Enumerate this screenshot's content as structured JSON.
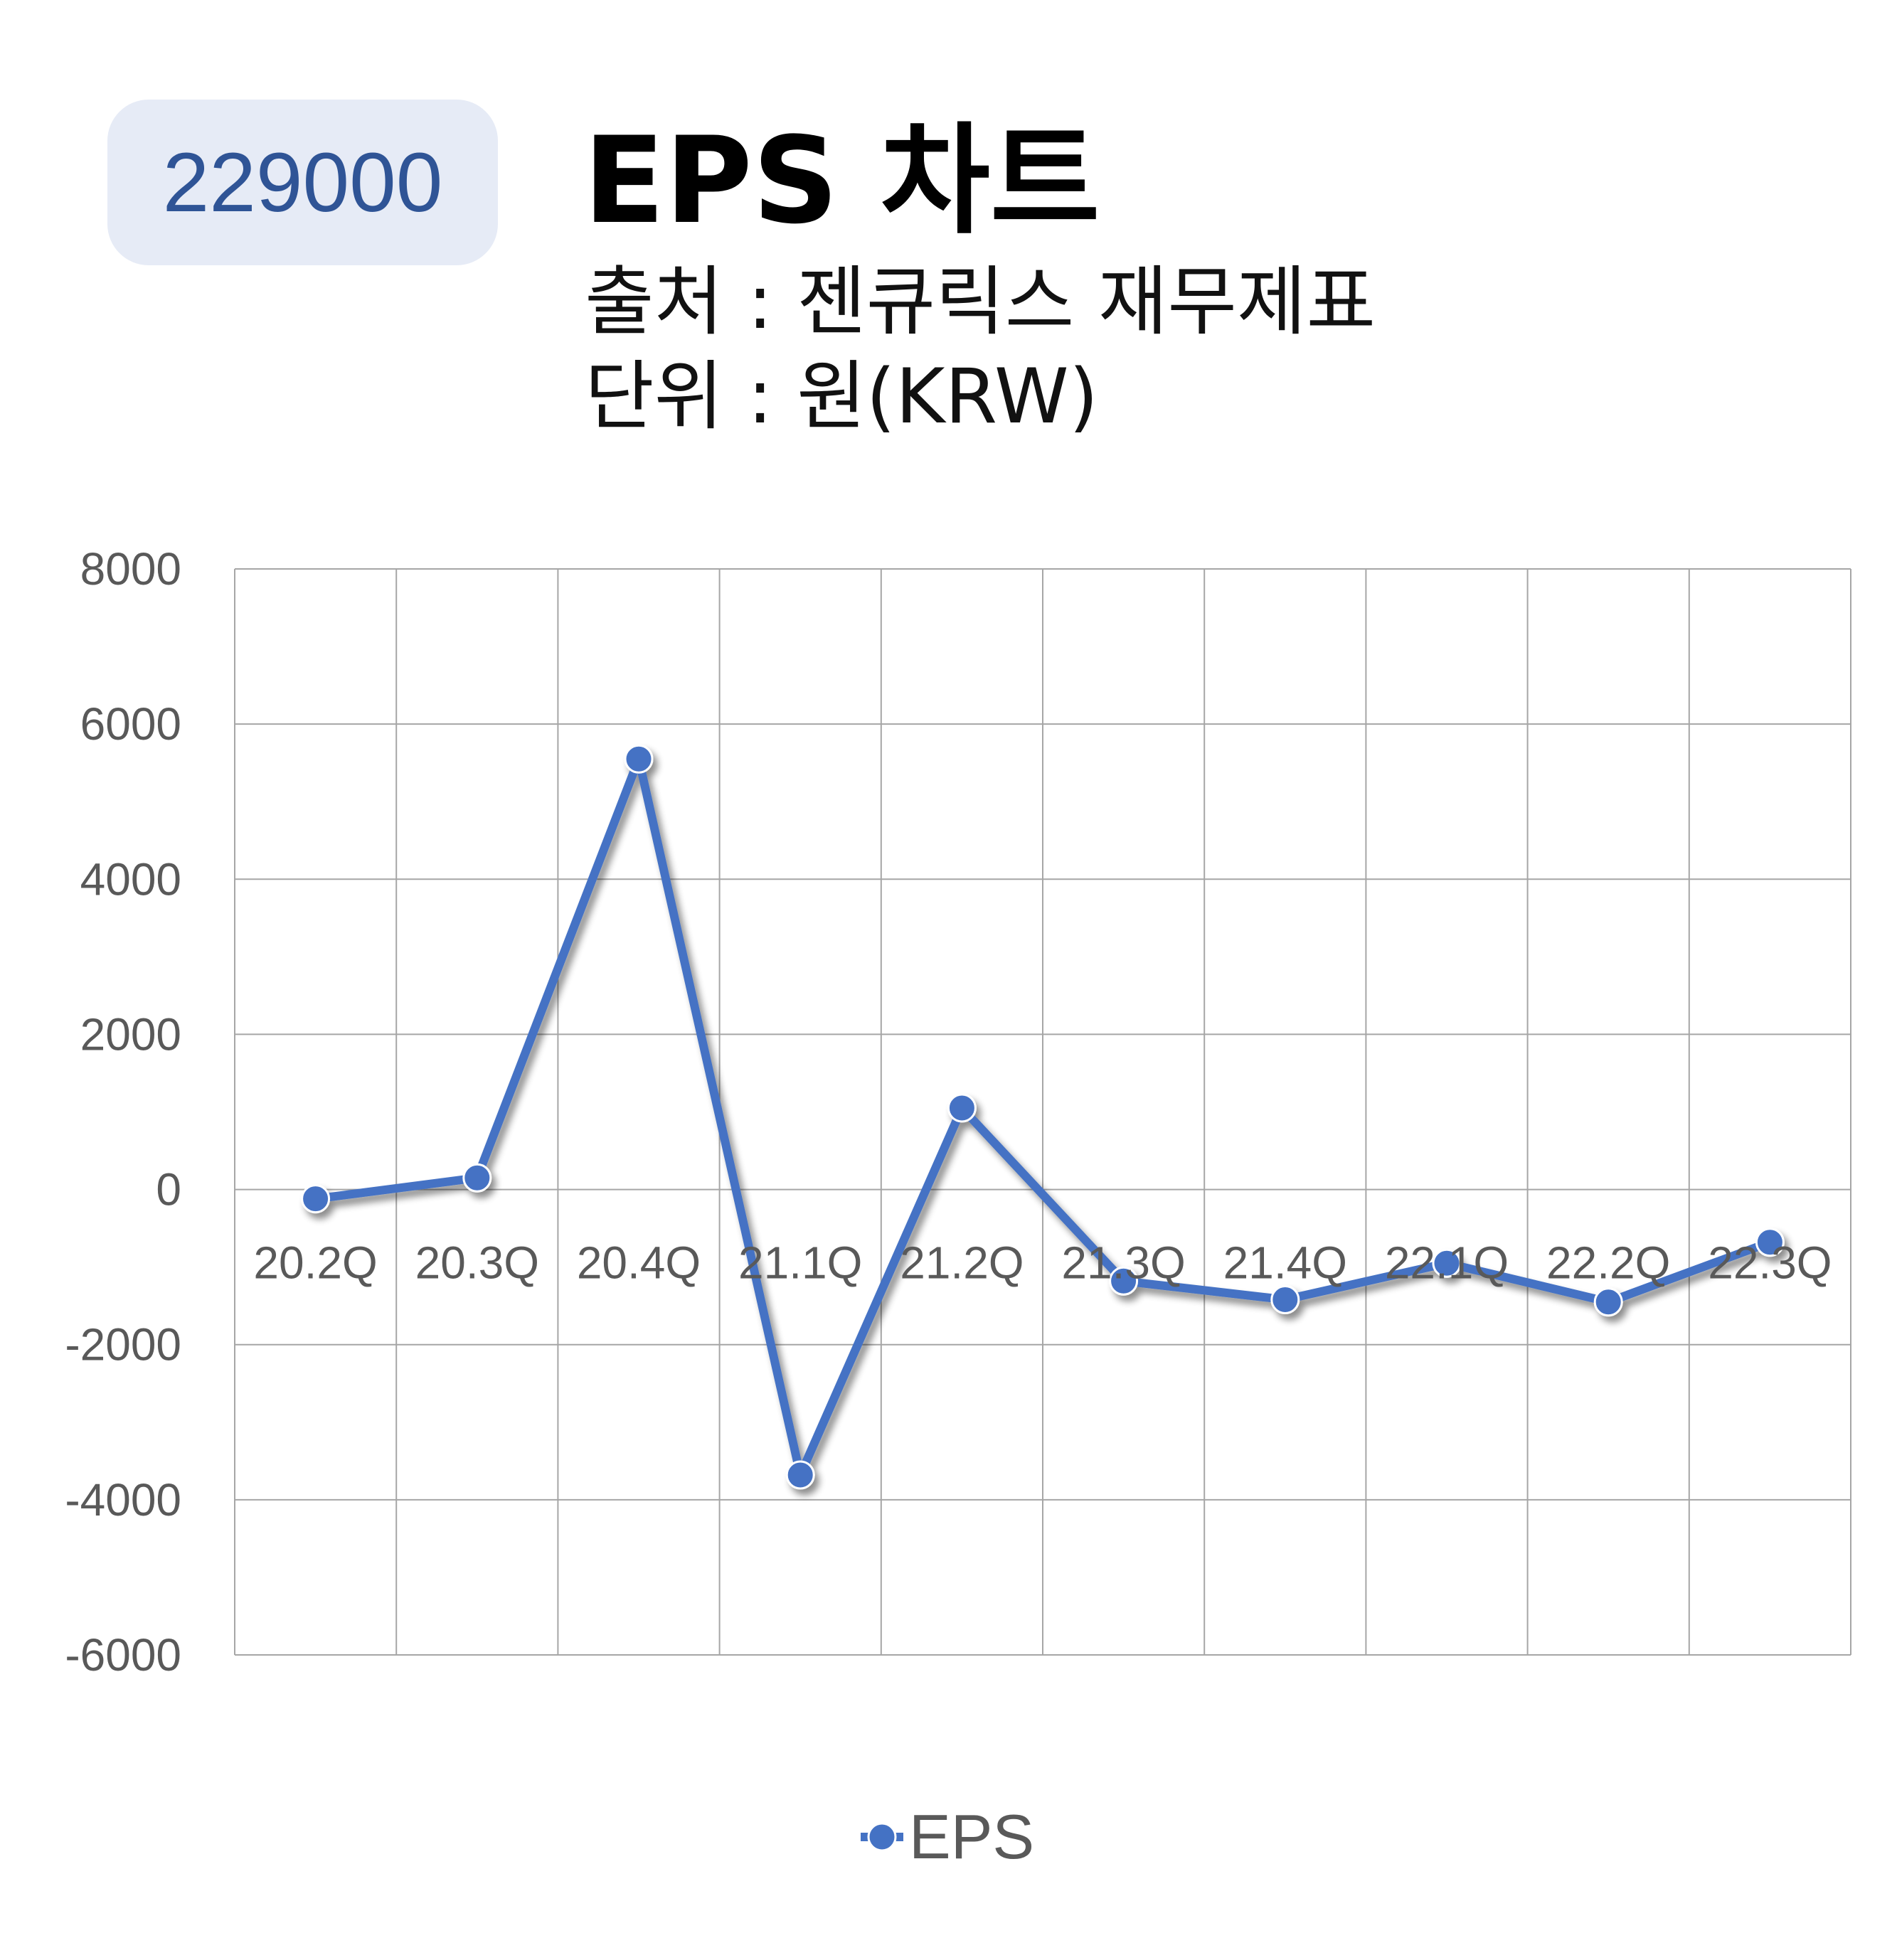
{
  "header": {
    "code": "229000",
    "title": "EPS 차트",
    "source": "출처 : 젠큐릭스 재무제표",
    "unit": "단위 : 원(KRW)"
  },
  "colors": {
    "series": "#4472c4",
    "grid": "#a6a6a6",
    "tick_text": "#595959"
  },
  "chart_data": {
    "type": "line",
    "categories": [
      "20.2Q",
      "20.3Q",
      "20.4Q",
      "21.1Q",
      "21.2Q",
      "21.3Q",
      "21.4Q",
      "22.1Q",
      "22.2Q",
      "22.3Q"
    ],
    "series": [
      {
        "name": "EPS",
        "values": [
          -120,
          150,
          5550,
          -3680,
          1050,
          -1180,
          -1420,
          -950,
          -1450,
          -680
        ]
      }
    ],
    "ylim": [
      -6000,
      8000
    ],
    "yticks": [
      8000,
      6000,
      4000,
      2000,
      0,
      -2000,
      -4000,
      -6000
    ],
    "grid": true,
    "legend": "bottom",
    "markers": true
  }
}
